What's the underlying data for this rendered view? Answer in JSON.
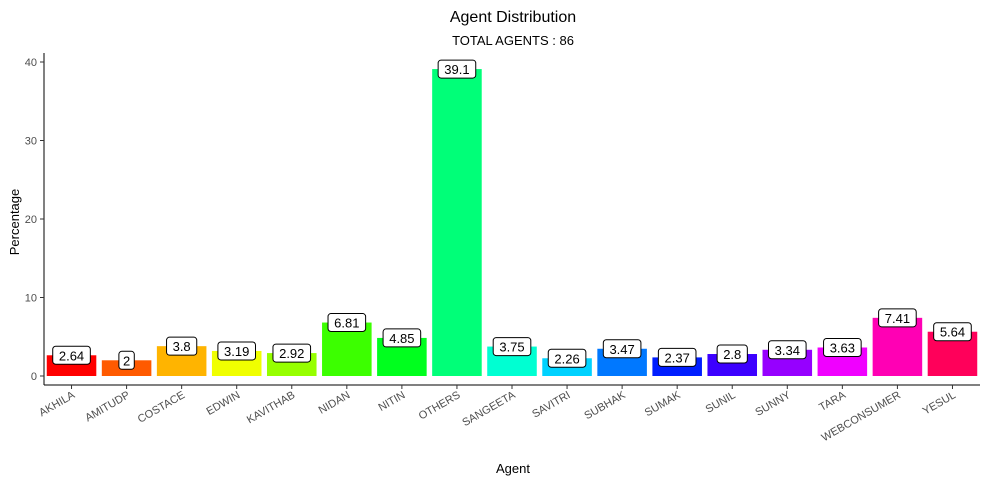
{
  "chart_data": {
    "type": "bar",
    "title": "Agent Distribution",
    "subtitle": "TOTAL AGENTS : 86",
    "xlabel": "Agent",
    "ylabel": "Percentage",
    "ylim": [
      0,
      41
    ],
    "yticks": [
      0,
      10,
      20,
      30,
      40
    ],
    "grid": false,
    "legend": "none",
    "categories": [
      "AKHILA",
      "AMITUDP",
      "COSTACE",
      "EDWIN",
      "KAVITHAB",
      "NIDAN",
      "NITIN",
      "OTHERS",
      "SANGEETA",
      "SAVITRI",
      "SUBHAK",
      "SUMAK",
      "SUNIL",
      "SUNNY",
      "TARA",
      "WEBCONSUMER",
      "YESUL"
    ],
    "values": [
      2.64,
      2,
      3.8,
      3.19,
      2.92,
      6.81,
      4.85,
      39.1,
      3.75,
      2.26,
      3.47,
      2.37,
      2.8,
      3.34,
      3.63,
      7.41,
      5.64
    ],
    "value_labels": [
      "2.64",
      "2",
      "3.8",
      "3.19",
      "2.92",
      "6.81",
      "4.85",
      "39.1",
      "3.75",
      "2.26",
      "3.47",
      "2.37",
      "2.8",
      "3.34",
      "3.63",
      "7.41",
      "5.64"
    ],
    "colors": [
      "#FF0000",
      "#FF5A00",
      "#FFB400",
      "#F0FF00",
      "#96FF00",
      "#3CFF00",
      "#00FF1E",
      "#00FF78",
      "#00FFD2",
      "#00D2FF",
      "#0078FF",
      "#001EFF",
      "#3C00FF",
      "#9600FF",
      "#F000FF",
      "#FF00B4",
      "#FF005A"
    ]
  }
}
